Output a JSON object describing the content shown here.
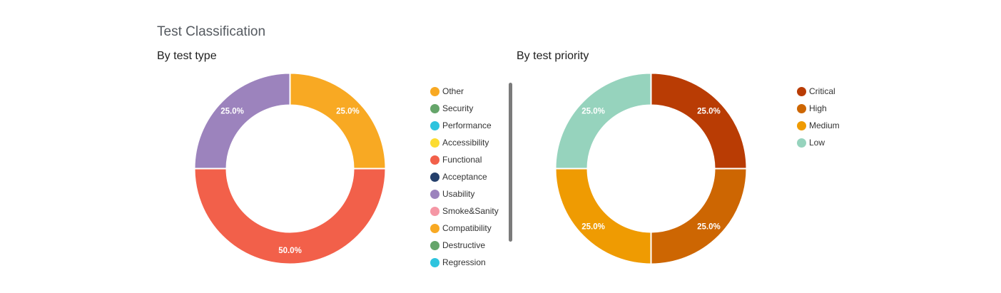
{
  "page": {
    "title": "Test Classification"
  },
  "chart_data": [
    {
      "type": "pie",
      "title": "By test type",
      "donut": true,
      "slices": [
        {
          "label": "Other",
          "percent": 25.0,
          "percent_label": "25.0%",
          "color": "#f8a923"
        },
        {
          "label": "Functional",
          "percent": 50.0,
          "percent_label": "50.0%",
          "color": "#f2604a"
        },
        {
          "label": "Usability",
          "percent": 25.0,
          "percent_label": "25.0%",
          "color": "#9c83bd"
        }
      ],
      "legend": [
        {
          "label": "Other",
          "color": "#f8a923"
        },
        {
          "label": "Security",
          "color": "#65a56a"
        },
        {
          "label": "Performance",
          "color": "#2ec4de"
        },
        {
          "label": "Accessibility",
          "color": "#fcdc31"
        },
        {
          "label": "Functional",
          "color": "#f2604a"
        },
        {
          "label": "Acceptance",
          "color": "#243f6b"
        },
        {
          "label": "Usability",
          "color": "#9c83bd"
        },
        {
          "label": "Smoke&Sanity",
          "color": "#f597a5"
        },
        {
          "label": "Compatibility",
          "color": "#f8a923"
        },
        {
          "label": "Destructive",
          "color": "#65a56a"
        },
        {
          "label": "Regression",
          "color": "#2ec4de"
        }
      ],
      "legend_position": "right"
    },
    {
      "type": "pie",
      "title": "By test priority",
      "donut": true,
      "slices": [
        {
          "label": "Critical",
          "percent": 25.0,
          "percent_label": "25.0%",
          "color": "#b93c04"
        },
        {
          "label": "High",
          "percent": 25.0,
          "percent_label": "25.0%",
          "color": "#cd6602"
        },
        {
          "label": "Medium",
          "percent": 25.0,
          "percent_label": "25.0%",
          "color": "#ef9b02"
        },
        {
          "label": "Low",
          "percent": 25.0,
          "percent_label": "25.0%",
          "color": "#96d3bd"
        }
      ],
      "legend": [
        {
          "label": "Critical",
          "color": "#b93c04"
        },
        {
          "label": "High",
          "color": "#cd6602"
        },
        {
          "label": "Medium",
          "color": "#ef9b02"
        },
        {
          "label": "Low",
          "color": "#96d3bd"
        }
      ],
      "legend_position": "right"
    }
  ]
}
